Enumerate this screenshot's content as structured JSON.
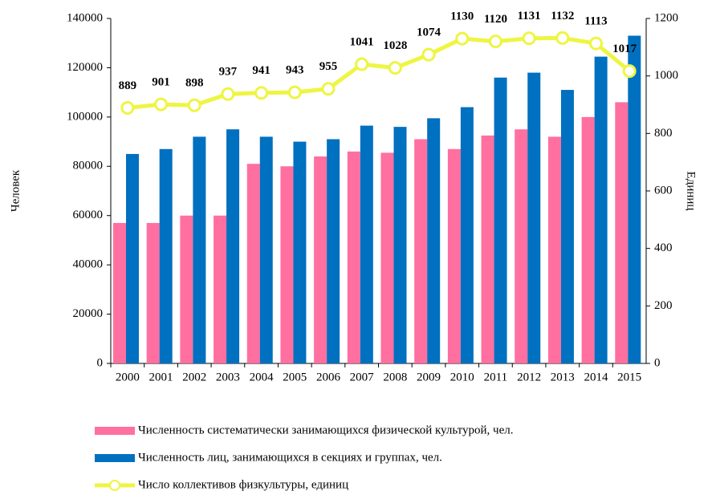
{
  "chart_data": {
    "type": "bar",
    "ylabel": "Человек",
    "y2label": "Единиц",
    "categories": [
      "2000",
      "2001",
      "2002",
      "2003",
      "2004",
      "2005",
      "2006",
      "2007",
      "2008",
      "2009",
      "2010",
      "2011",
      "2012",
      "2013",
      "2014",
      "2015"
    ],
    "series": [
      {
        "name": "Численность систематически занимающихся физической культурой, чел.",
        "type": "bar",
        "color": "#ff6fa0",
        "values": [
          57000,
          57000,
          60000,
          60000,
          81000,
          80000,
          84000,
          86000,
          85500,
          91000,
          87000,
          92500,
          95000,
          92000,
          100000,
          106000
        ]
      },
      {
        "name": "Численность лиц, занимающихся в секциях и группах, чел.",
        "type": "bar",
        "color": "#0070c0",
        "values": [
          85000,
          87000,
          92000,
          95000,
          92000,
          90000,
          91000,
          96500,
          96000,
          99500,
          104000,
          116000,
          118000,
          111000,
          124500,
          133000
        ]
      },
      {
        "name": "Число коллективов физкультуры, единиц",
        "type": "line",
        "axis": "y2",
        "color": "#eef542",
        "values": [
          889,
          901,
          898,
          937,
          941,
          943,
          955,
          1041,
          1028,
          1074,
          1130,
          1120,
          1131,
          1132,
          1113,
          1017
        ]
      }
    ],
    "ylim": [
      0,
      140000
    ],
    "yticks": [
      0,
      20000,
      40000,
      60000,
      80000,
      100000,
      120000,
      140000
    ],
    "y2lim": [
      0,
      1200
    ],
    "y2ticks": [
      0,
      200,
      400,
      600,
      800,
      1000,
      1200
    ],
    "grid": false,
    "legend": "bottom"
  }
}
